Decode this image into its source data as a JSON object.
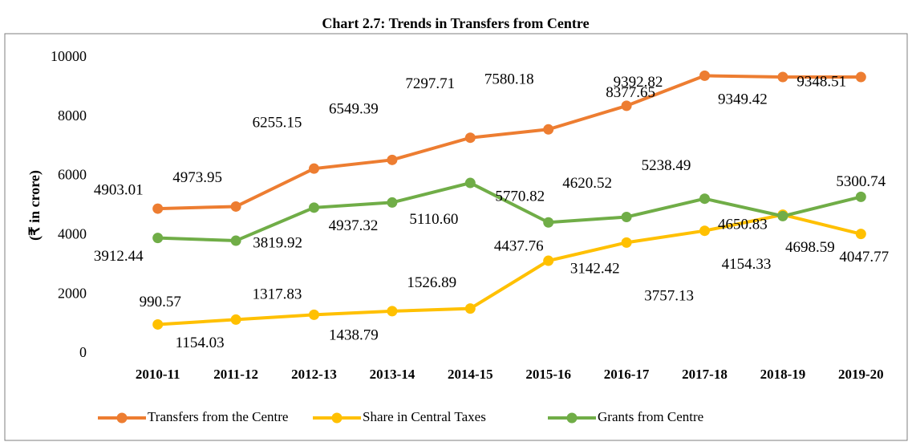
{
  "chart_data": {
    "type": "line",
    "title": "Chart 2.7: Trends in Transfers from Centre",
    "y_label": "(₹ in crore)",
    "categories": [
      "2010-11",
      "2011-12",
      "2012-13",
      "2013-14",
      "2014-15",
      "2015-16",
      "2016-17",
      "2017-18",
      "2018-19",
      "2019-20"
    ],
    "ylim": [
      0,
      10000
    ],
    "yticks": [
      0,
      2000,
      4000,
      6000,
      8000,
      10000
    ],
    "grid": false,
    "legend": "bottom",
    "series": [
      {
        "name": "Transfers from the Centre",
        "color": "#ed7d31",
        "values": [
          4903.01,
          4973.95,
          6255.15,
          6549.39,
          7297.71,
          7580.18,
          8377.65,
          9392.82,
          9349.42,
          9348.51
        ]
      },
      {
        "name": "Share in Central Taxes",
        "color": "#ffc000",
        "values": [
          990.57,
          1154.03,
          1317.83,
          1438.79,
          1526.89,
          3142.42,
          3757.13,
          4154.33,
          4698.59,
          4047.77
        ]
      },
      {
        "name": "Grants from Centre",
        "color": "#70ad47",
        "values": [
          3912.44,
          3819.92,
          4937.32,
          5110.6,
          5770.82,
          4437.76,
          4620.52,
          5238.49,
          4650.83,
          5300.74
        ],
        "value_labels": [
          "3912.44",
          "3819.92",
          "4937.32",
          "5110.60",
          "5770.82",
          "4437.76",
          "4620.52",
          "5238.49",
          "4650.83",
          "5300.74"
        ]
      }
    ]
  }
}
